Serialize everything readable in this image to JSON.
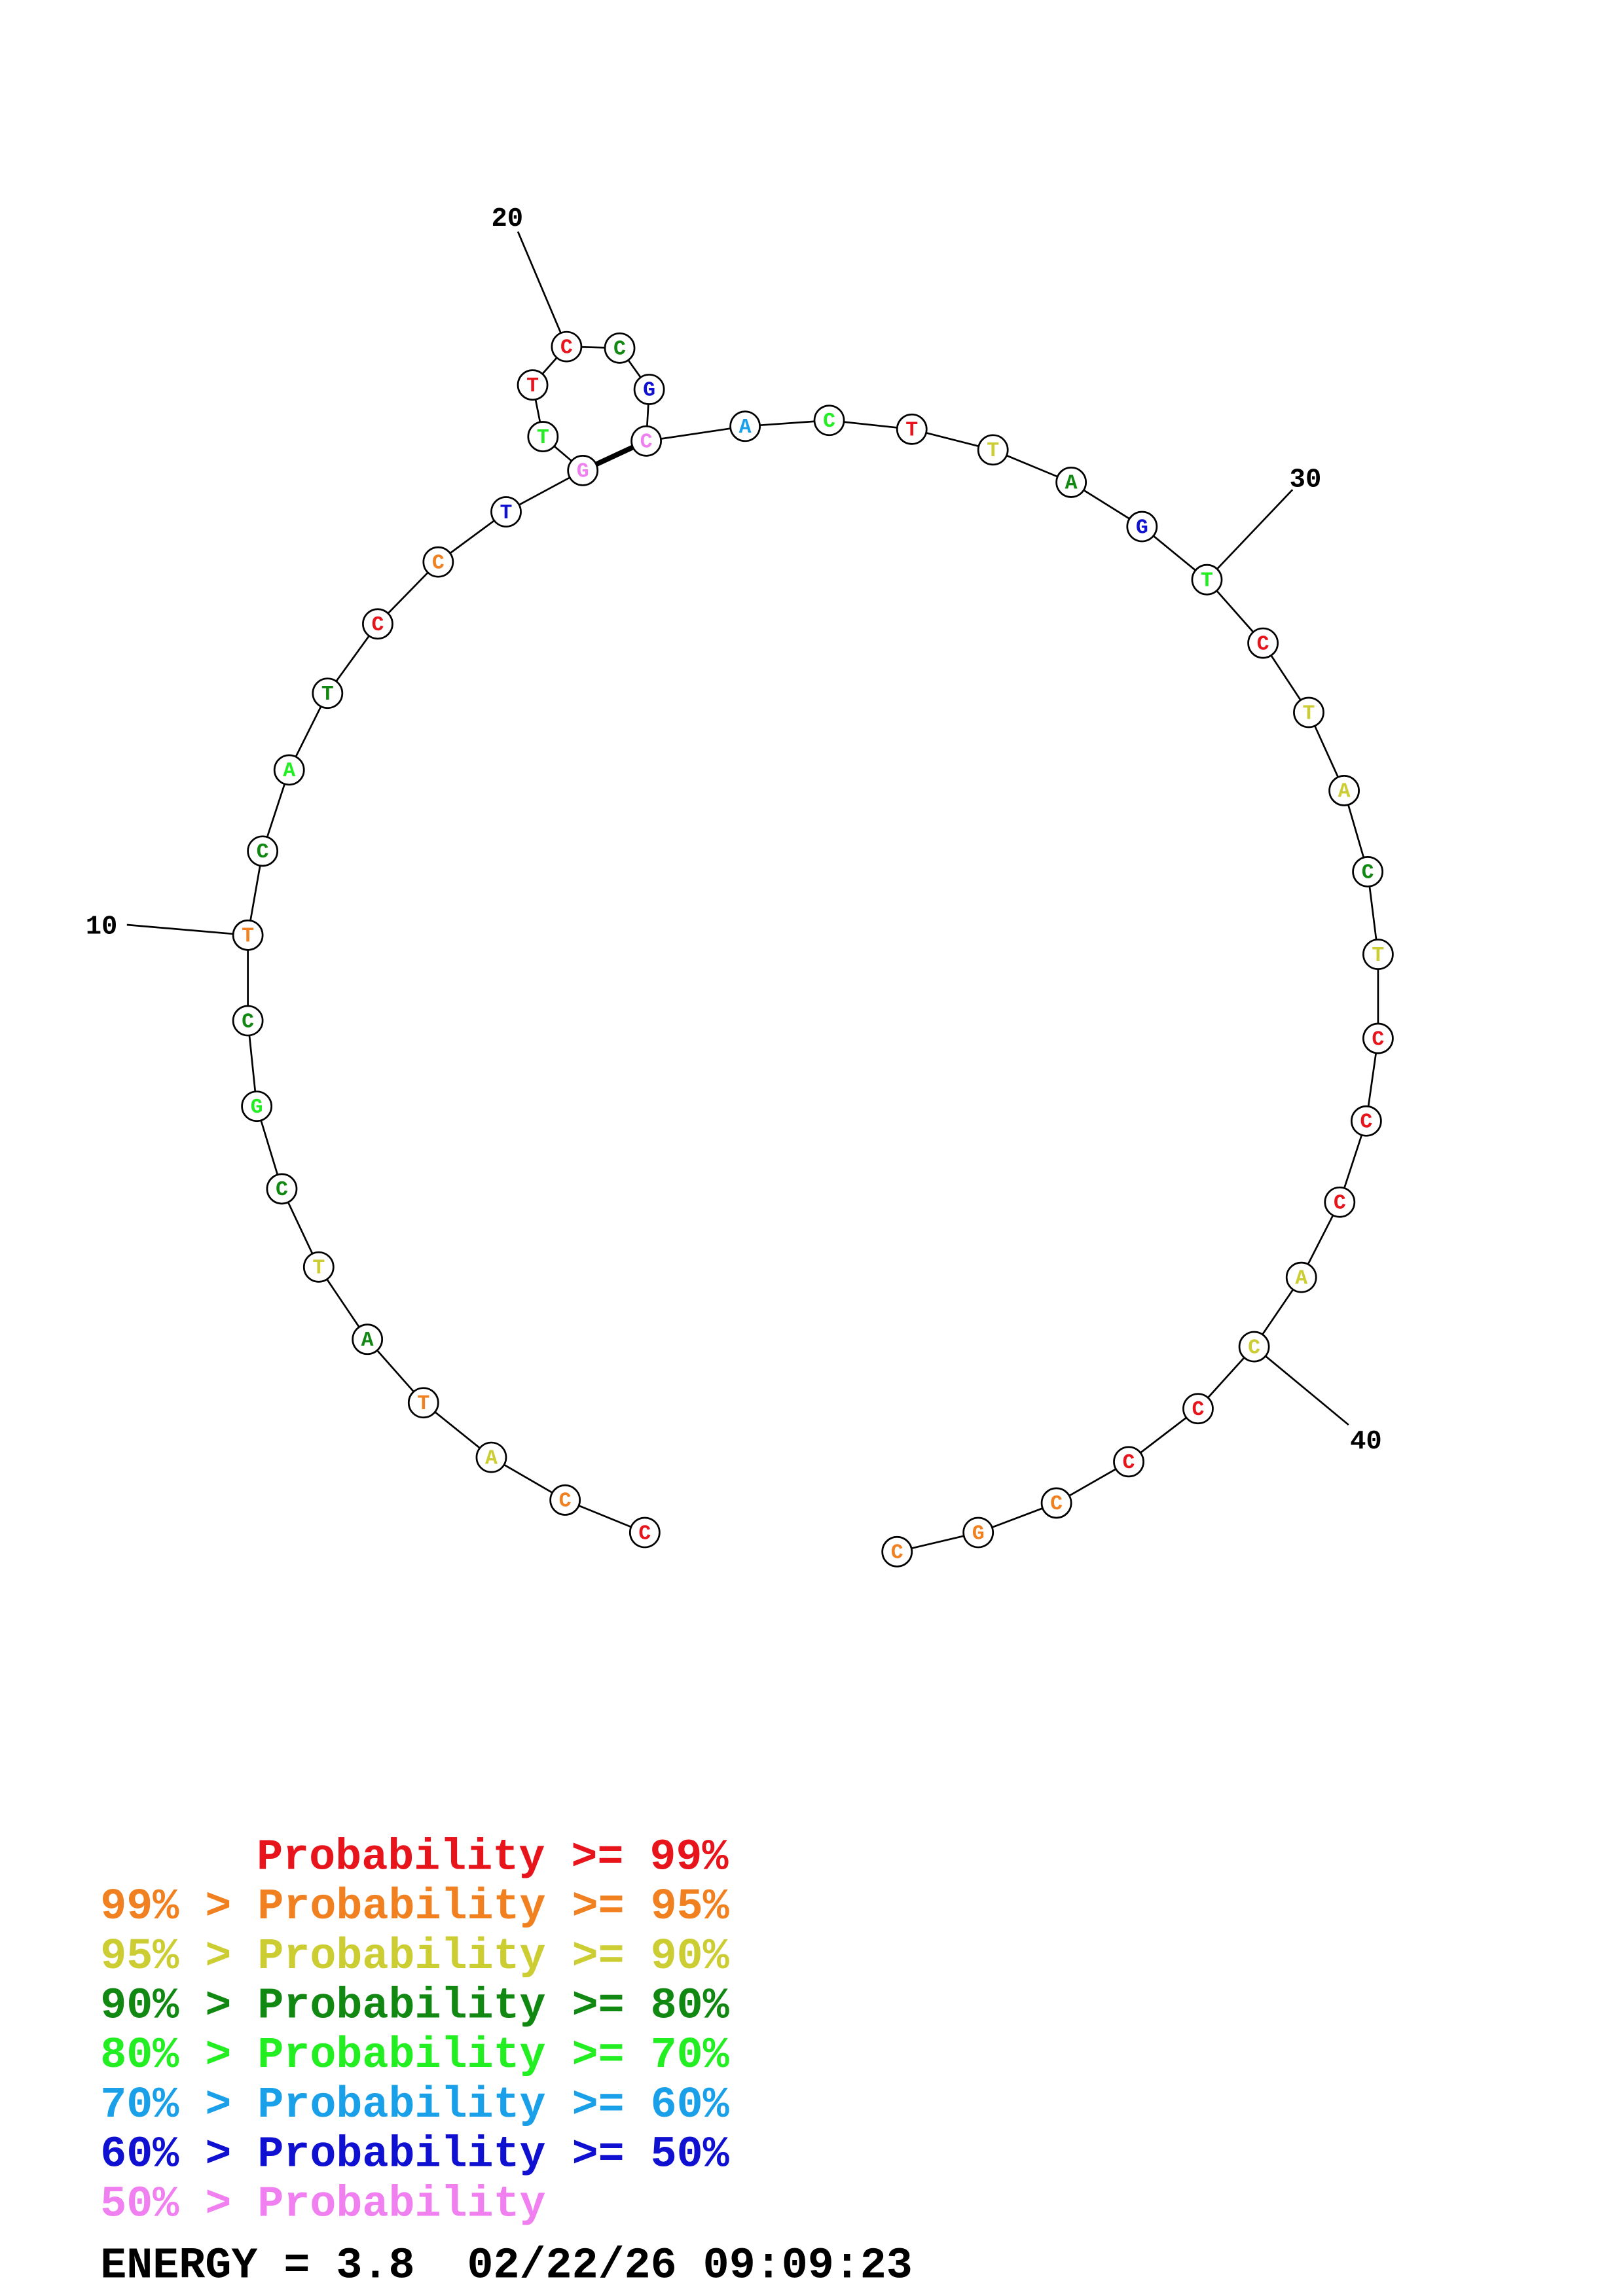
{
  "nucleotides": [
    {
      "base": "C",
      "color": "#e8141c"
    },
    {
      "base": "C",
      "color": "#f08020"
    },
    {
      "base": "A",
      "color": "#cccc33"
    },
    {
      "base": "T",
      "color": "#f08020"
    },
    {
      "base": "A",
      "color": "#118811"
    },
    {
      "base": "T",
      "color": "#cccc33"
    },
    {
      "base": "C",
      "color": "#118811"
    },
    {
      "base": "G",
      "color": "#22ee22"
    },
    {
      "base": "C",
      "color": "#118811"
    },
    {
      "base": "T",
      "color": "#f08020"
    },
    {
      "base": "C",
      "color": "#118811"
    },
    {
      "base": "A",
      "color": "#22ee22"
    },
    {
      "base": "T",
      "color": "#118811"
    },
    {
      "base": "C",
      "color": "#e8141c"
    },
    {
      "base": "C",
      "color": "#f08020"
    },
    {
      "base": "T",
      "color": "#1010d0"
    },
    {
      "base": "G",
      "color": "#f080f0"
    },
    {
      "base": "T",
      "color": "#22ee22"
    },
    {
      "base": "T",
      "color": "#e8141c"
    },
    {
      "base": "C",
      "color": "#e8141c"
    },
    {
      "base": "C",
      "color": "#118811"
    },
    {
      "base": "G",
      "color": "#1010d0"
    },
    {
      "base": "C",
      "color": "#f080f0"
    },
    {
      "base": "A",
      "color": "#1aa0e8"
    },
    {
      "base": "C",
      "color": "#22ee22"
    },
    {
      "base": "T",
      "color": "#e8141c"
    },
    {
      "base": "T",
      "color": "#cccc33"
    },
    {
      "base": "A",
      "color": "#118811"
    },
    {
      "base": "G",
      "color": "#1010d0"
    },
    {
      "base": "T",
      "color": "#22ee22"
    },
    {
      "base": "C",
      "color": "#e8141c"
    },
    {
      "base": "T",
      "color": "#cccc33"
    },
    {
      "base": "A",
      "color": "#cccc33"
    },
    {
      "base": "C",
      "color": "#118811"
    },
    {
      "base": "T",
      "color": "#cccc33"
    },
    {
      "base": "C",
      "color": "#e8141c"
    },
    {
      "base": "C",
      "color": "#e8141c"
    },
    {
      "base": "C",
      "color": "#e8141c"
    },
    {
      "base": "A",
      "color": "#cccc33"
    },
    {
      "base": "C",
      "color": "#cccc33"
    },
    {
      "base": "C",
      "color": "#e8141c"
    },
    {
      "base": "C",
      "color": "#e8141c"
    },
    {
      "base": "C",
      "color": "#f08020"
    },
    {
      "base": "G",
      "color": "#f08020"
    },
    {
      "base": "C",
      "color": "#f08020"
    }
  ],
  "number_labels": [
    "10",
    "20",
    "30",
    "40"
  ],
  "legend": [
    {
      "text": "Probability >= 99%",
      "color": "#e8141c"
    },
    {
      "text": "99% > Probability >= 95%",
      "color": "#f08020"
    },
    {
      "text": "95% > Probability >= 90%",
      "color": "#cccc33"
    },
    {
      "text": "90% > Probability >= 80%",
      "color": "#118811"
    },
    {
      "text": "80% > Probability >= 70%",
      "color": "#22ee22"
    },
    {
      "text": "70% > Probability >= 60%",
      "color": "#1aa0e8"
    },
    {
      "text": "60% > Probability >= 50%",
      "color": "#1010d0"
    },
    {
      "text": "50% > Probability",
      "color": "#f080f0"
    }
  ],
  "energy": "ENERGY = 3.8  02/22/26 09:09:23"
}
